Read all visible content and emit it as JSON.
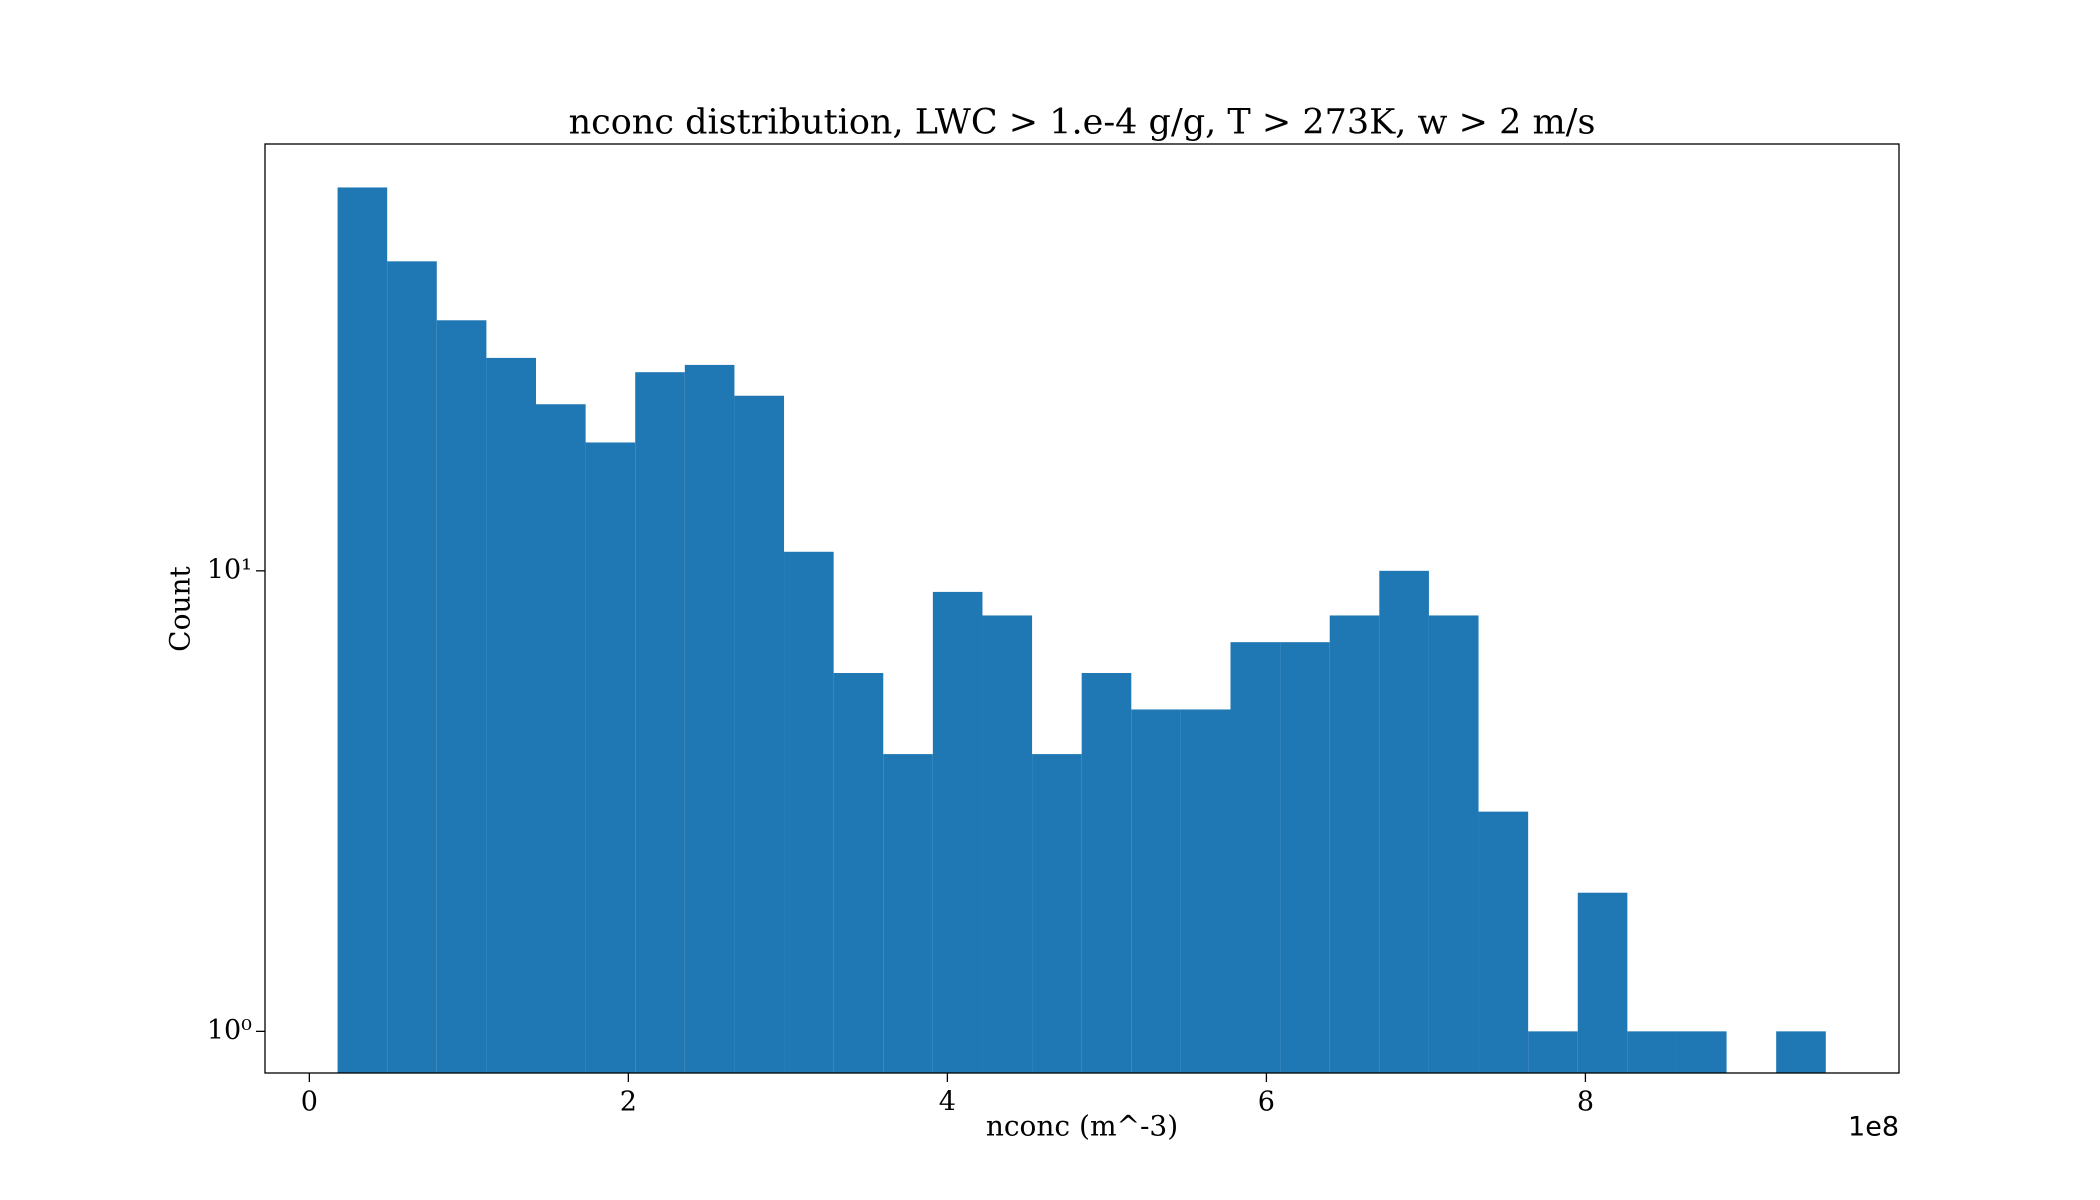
{
  "chart_data": {
    "type": "histogram",
    "title": "nconc distribution, LWC > 1.e-4 g/g, T > 273K, w > 2 m/s",
    "x_label": "nconc (m^-3)",
    "y_label": "Count",
    "x_offset_label": "1e8",
    "bins": [
      0.177,
      0.488,
      0.799,
      1.11,
      1.421,
      1.732,
      2.043,
      2.354,
      2.665,
      2.976,
      3.287,
      3.598,
      3.909,
      4.22,
      4.531,
      4.842,
      5.153,
      5.464,
      5.775,
      6.086,
      6.397,
      6.708,
      7.019,
      7.33,
      7.641,
      7.952,
      8.263,
      8.574,
      8.885,
      9.196,
      9.507
    ],
    "values": [
      68,
      47,
      35,
      29,
      23,
      19,
      27,
      28,
      24,
      11,
      6,
      4,
      9,
      8,
      4,
      6,
      5,
      5,
      7,
      7,
      8,
      10,
      8,
      3,
      1,
      2,
      1,
      1,
      0,
      1
    ],
    "color": "#1f77b4",
    "xlim": [
      -0.278,
      9.966
    ],
    "xticks": [
      0,
      2,
      4,
      6,
      8
    ],
    "ylim": [
      0.812,
      84.5
    ],
    "y_log": true,
    "yticks": [
      {
        "value": 1,
        "label": "10⁰"
      },
      {
        "value": 10,
        "label": "10¹"
      }
    ]
  }
}
